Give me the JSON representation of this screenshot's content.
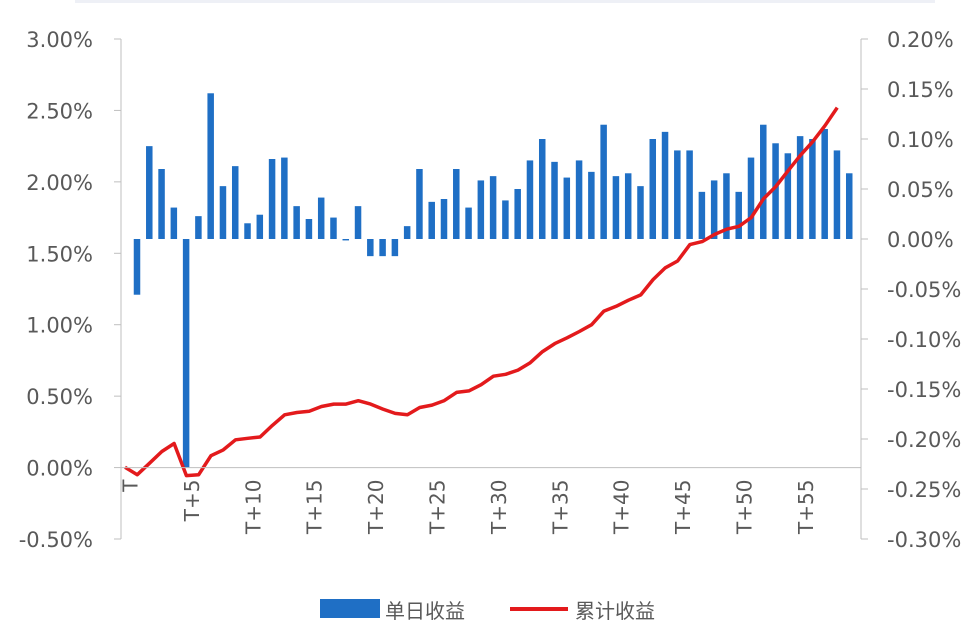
{
  "chart_data": {
    "type": "bar+line",
    "title": "",
    "x_tick_labels": [
      "T",
      "T+5",
      "T+10",
      "T+15",
      "T+20",
      "T+25",
      "T+30",
      "T+35",
      "T+40",
      "T+45",
      "T+50",
      "T+55"
    ],
    "x_tick_indices": [
      0,
      5,
      10,
      15,
      20,
      25,
      30,
      35,
      40,
      45,
      50,
      55
    ],
    "left_axis": {
      "ylim": [
        -0.5,
        3.0
      ],
      "ticks": [
        3.0,
        2.5,
        2.0,
        1.5,
        1.0,
        0.5,
        0.0,
        -0.5
      ],
      "tick_labels": [
        "3.00%",
        "2.50%",
        "2.00%",
        "1.50%",
        "1.00%",
        "0.50%",
        "0.00%",
        "-0.50%"
      ],
      "baseline": 1.6
    },
    "right_axis": {
      "ylim": [
        -0.3,
        0.2
      ],
      "ticks": [
        0.2,
        0.15,
        0.1,
        0.05,
        0.0,
        -0.05,
        -0.1,
        -0.15,
        -0.2,
        -0.25,
        -0.3
      ],
      "tick_labels": [
        "0.20%",
        "0.15%",
        "0.10%",
        "0.05%",
        "0.00%",
        "-0.05%",
        "-0.10%",
        "-0.15%",
        "-0.20%",
        "-0.25%",
        "-0.30%"
      ]
    },
    "series": [
      {
        "name": "单日收益",
        "kind": "bar",
        "color": "#1F6FC5",
        "axis": "left",
        "values": [
          1.21,
          2.25,
          2.09,
          1.82,
          0.0,
          1.76,
          2.62,
          1.97,
          2.11,
          1.71,
          1.77,
          2.16,
          2.17,
          1.83,
          1.74,
          1.89,
          1.75,
          1.59,
          1.83,
          1.48,
          1.48,
          1.48,
          1.69,
          2.09,
          1.86,
          1.88,
          2.09,
          1.82,
          2.01,
          2.04,
          1.87,
          1.95,
          2.15,
          2.3,
          2.14,
          2.03,
          2.15,
          2.07,
          2.4,
          2.04,
          2.06,
          1.97,
          2.3,
          2.35,
          2.22,
          2.22,
          1.93,
          2.01,
          2.06,
          1.93,
          2.17,
          2.4,
          2.27,
          2.2,
          2.32,
          2.3,
          2.37,
          2.22,
          2.06
        ]
      },
      {
        "name": "累计收益",
        "kind": "line",
        "color": "#E31A1C",
        "axis": "right",
        "values": [
          -0.2283,
          -0.2357,
          -0.2242,
          -0.2125,
          -0.2045,
          -0.2366,
          -0.2357,
          -0.2167,
          -0.2109,
          -0.2008,
          -0.1993,
          -0.198,
          -0.1864,
          -0.1758,
          -0.1735,
          -0.1722,
          -0.1675,
          -0.1651,
          -0.1651,
          -0.1617,
          -0.1651,
          -0.1701,
          -0.1744,
          -0.1757,
          -0.1685,
          -0.1661,
          -0.1616,
          -0.1534,
          -0.1519,
          -0.1457,
          -0.1372,
          -0.1353,
          -0.1311,
          -0.1237,
          -0.1126,
          -0.1046,
          -0.0988,
          -0.0925,
          -0.0857,
          -0.0721,
          -0.0673,
          -0.0612,
          -0.0559,
          -0.0406,
          -0.0288,
          -0.022,
          -0.0056,
          -0.0026,
          0.0045,
          0.0098,
          0.0127,
          0.0215,
          0.0403,
          0.0525,
          0.0683,
          0.0837,
          0.0973,
          0.1133,
          0.1314
        ]
      }
    ],
    "legend": {
      "placement": "bottom"
    },
    "grid": false
  }
}
